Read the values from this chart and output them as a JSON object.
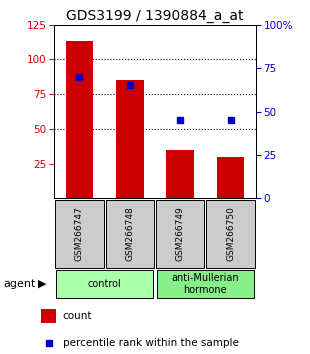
{
  "title": "GDS3199 / 1390884_a_at",
  "samples": [
    "GSM266747",
    "GSM266748",
    "GSM266749",
    "GSM266750"
  ],
  "counts": [
    113,
    85,
    35,
    30
  ],
  "percentiles": [
    70,
    65,
    45,
    45
  ],
  "ylim_left": [
    0,
    125
  ],
  "ylim_right": [
    0,
    100
  ],
  "left_ticks": [
    25,
    50,
    75,
    100,
    125
  ],
  "right_ticks": [
    0,
    25,
    50,
    75,
    100
  ],
  "bar_color": "#cc0000",
  "dot_color": "#0000cc",
  "groups": [
    {
      "label": "control",
      "indices": [
        0,
        1
      ],
      "color": "#aaffaa"
    },
    {
      "label": "anti-Mullerian\nhormone",
      "indices": [
        2,
        3
      ],
      "color": "#88ee88"
    }
  ],
  "agent_label": "agent",
  "legend_count_label": "count",
  "legend_pct_label": "percentile rank within the sample",
  "title_fontsize": 10,
  "tick_fontsize": 7.5,
  "bar_width": 0.55,
  "sample_bg_color": "#cccccc",
  "left_tick_color": "#cc0000",
  "right_tick_color": "#0000cc",
  "grid_dotted_at": [
    50,
    75,
    100
  ]
}
